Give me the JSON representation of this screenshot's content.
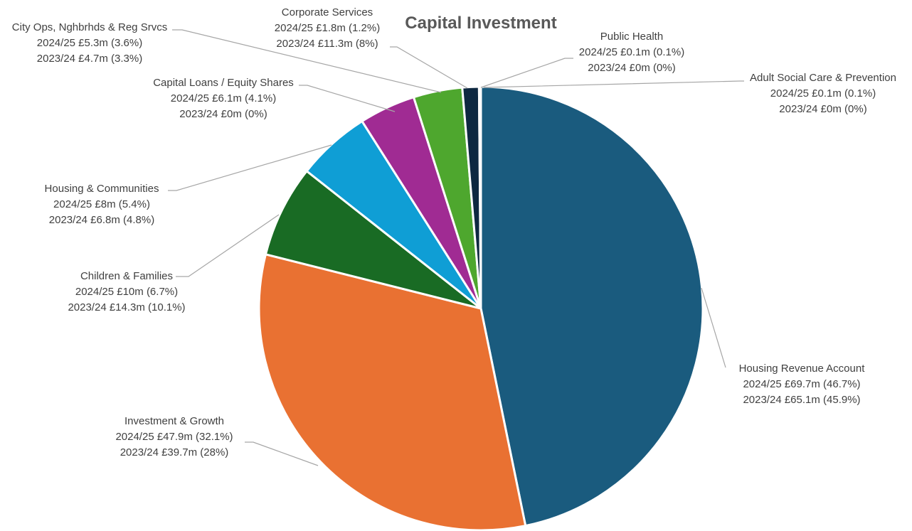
{
  "chart_data": {
    "type": "pie",
    "title": "Capital Investment",
    "start_angle_deg": 0,
    "direction": "clockwise",
    "slices": [
      {
        "name": "Housing Revenue Account",
        "value": 69.7,
        "percent": 46.7,
        "color": "#1a5b7e",
        "line1": "2024/25 £69.7m (46.7%)",
        "line2": "2023/24 £65.1m (45.9%)"
      },
      {
        "name": "Investment & Growth",
        "value": 47.9,
        "percent": 32.1,
        "color": "#e97132",
        "line1": "2024/25 £47.9m (32.1%)",
        "line2": "2023/24 £39.7m (28%)"
      },
      {
        "name": "Children & Families",
        "value": 10.0,
        "percent": 6.7,
        "color": "#196b24",
        "line1": "2024/25 £10m (6.7%)",
        "line2": "2023/24 £14.3m (10.1%)"
      },
      {
        "name": "Housing & Communities",
        "value": 8.0,
        "percent": 5.4,
        "color": "#0f9ed5",
        "line1": "2024/25 £8m (5.4%)",
        "line2": "2023/24 £6.8m (4.8%)"
      },
      {
        "name": "Capital Loans / Equity Shares",
        "value": 6.1,
        "percent": 4.1,
        "color": "#a02b93",
        "line1": "2024/25 £6.1m (4.1%)",
        "line2": "2023/24 £0m (0%)"
      },
      {
        "name": "City Ops, Nghbrhds & Reg Srvcs",
        "value": 5.3,
        "percent": 3.6,
        "color": "#4ea72e",
        "line1": "2024/25 £5.3m (3.6%)",
        "line2": "2023/24 £4.7m (3.3%)"
      },
      {
        "name": "Corporate Services",
        "value": 1.8,
        "percent": 1.2,
        "color": "#0e2841",
        "line1": "2024/25 £1.8m (1.2%)",
        "line2": "2023/24 £11.3m (8%)"
      },
      {
        "name": "Public Health",
        "value": 0.1,
        "percent": 0.1,
        "color": "#a6caec",
        "line1": "2024/25 £0.1m (0.1%)",
        "line2": "2023/24 £0m (0%)"
      },
      {
        "name": "Adult Social Care & Prevention",
        "value": 0.1,
        "percent": 0.1,
        "color": "#7f7f7f",
        "line1": "2024/25 £0.1m (0.1%)",
        "line2": "2023/24 £0m (0%)"
      }
    ]
  }
}
